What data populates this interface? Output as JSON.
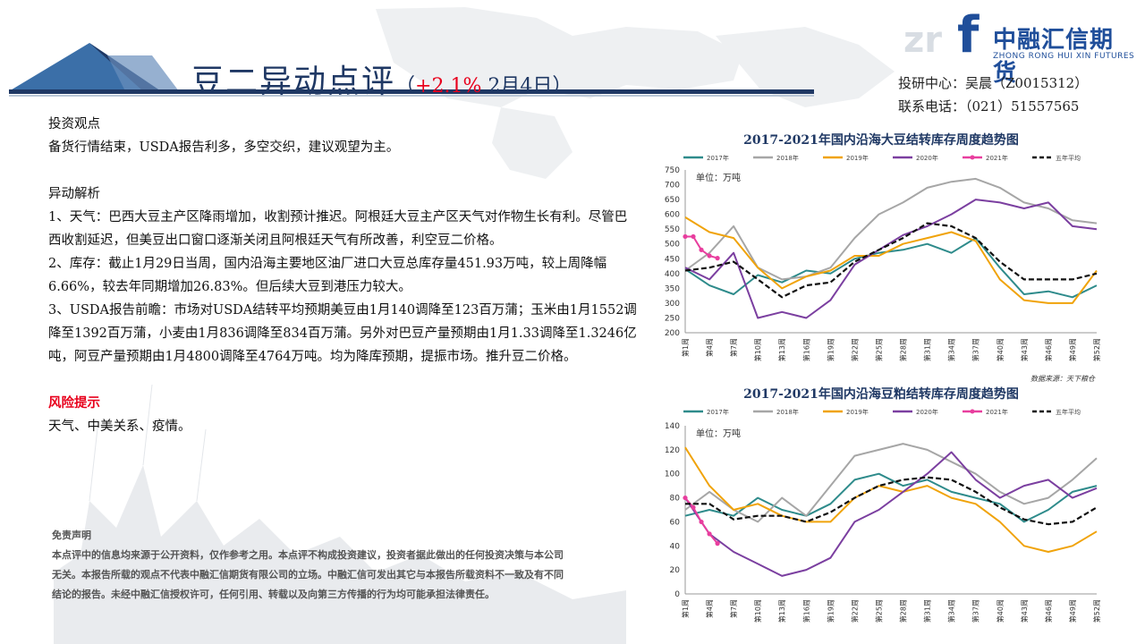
{
  "header": {
    "title": "豆二异动点评",
    "change_open": "（",
    "change_pct": "+2.1%",
    "change_date": " 2月4日）",
    "contact_line1": "投研中心：吴晨（Z0015312）",
    "contact_line2": "联系电话：（021）51557565"
  },
  "logo": {
    "watermark": "zr",
    "mark": "f",
    "name_cn": "中融汇信期货",
    "name_en": "ZHONG RONG HUI XIN FUTURES"
  },
  "body": {
    "view_heading": "投资观点",
    "view_text": "备货行情结束，USDA报告利多，多空交织，建议观望为主。",
    "analysis_heading": "异动解析",
    "analysis_1": "1、天气：巴西大豆主产区降雨增加，收割预计推迟。阿根廷大豆主产区天气对作物生长有利。尽管巴西收割延迟，但美豆出口窗口逐渐关闭且阿根廷天气有所改善，利空豆二价格。",
    "analysis_2": "2、库存：截止1月29日当周，国内沿海主要地区油厂进口大豆总库存量451.93万吨，较上周降幅6.66%，较去年同期增加26.83%。但后续大豆到港压力较大。",
    "analysis_3": "3、USDA报告前瞻：市场对USDA结转平均预期美豆由1月140调降至123百万蒲；玉米由1月1552调降至1392百万蒲，小麦由1月836调降至834百万蒲。另外对巴豆产量预期由1月1.33调降至1.3246亿吨，阿豆产量预期由1月4800调降至4764万吨。均为降库预期，提振市场。推升豆二价格。",
    "risk_heading": "风险提示",
    "risk_text": "天气、中美关系、疫情。",
    "disclaimer_heading": "免责声明",
    "disclaimer_text": "本点评中的信息均来源于公开资料，仅作参考之用。本点评不构成投资建议，投资者据此做出的任何投资决策与本公司无关。本报告所载的观点不代表中融汇信期货有限公司的立场。中融汇信可发出其它与本报告所载资料不一致及有不同结论的报告。未经中融汇信授权许可，任何引用、转载以及向第三方传播的行为均可能承担法律责任。"
  },
  "colors": {
    "2017": "#2e8b8b",
    "2018": "#a6a6a6",
    "2019": "#f0a30a",
    "2020": "#7b3fa0",
    "2021": "#e83e9e",
    "avg": "#111111",
    "title": "#1f3864",
    "accent": "#e8001c"
  },
  "chart_data": [
    {
      "type": "line",
      "title": "2017-2021年国内沿海大豆结转库存周度趋势图",
      "unit_label": "单位：万吨",
      "source": "数据来源：天下粮仓",
      "ylim": [
        200,
        750
      ],
      "yticks": [
        200,
        250,
        300,
        350,
        400,
        450,
        500,
        550,
        600,
        650,
        700,
        750
      ],
      "x_tick_labels": [
        "第1周",
        "第4周",
        "第7周",
        "第10周",
        "第13周",
        "第16周",
        "第19周",
        "第22周",
        "第25周",
        "第28周",
        "第31周",
        "第34周",
        "第37周",
        "第40周",
        "第43周",
        "第46周",
        "第49周",
        "第52周"
      ],
      "legend": [
        "2017年",
        "2018年",
        "2019年",
        "2020年",
        "2021年",
        "五年平均"
      ],
      "series": [
        {
          "name": "2017年",
          "key": "2017",
          "dash": false,
          "x": [
            1,
            4,
            7,
            10,
            13,
            16,
            19,
            22,
            25,
            28,
            31,
            34,
            37,
            40,
            43,
            46,
            49,
            52
          ],
          "values": [
            415,
            360,
            330,
            395,
            370,
            410,
            400,
            450,
            470,
            480,
            500,
            470,
            520,
            420,
            330,
            340,
            320,
            360
          ]
        },
        {
          "name": "2018年",
          "key": "2018",
          "dash": false,
          "x": [
            1,
            4,
            7,
            10,
            13,
            16,
            19,
            22,
            25,
            28,
            31,
            34,
            37,
            40,
            43,
            46,
            49,
            52
          ],
          "values": [
            410,
            470,
            560,
            420,
            380,
            390,
            420,
            520,
            600,
            640,
            690,
            710,
            720,
            690,
            640,
            620,
            580,
            570
          ]
        },
        {
          "name": "2019年",
          "key": "2019",
          "dash": false,
          "x": [
            1,
            4,
            7,
            10,
            13,
            16,
            19,
            22,
            25,
            28,
            31,
            34,
            37,
            40,
            43,
            46,
            49,
            52
          ],
          "values": [
            590,
            540,
            520,
            420,
            350,
            390,
            410,
            460,
            460,
            500,
            520,
            540,
            510,
            380,
            310,
            300,
            300,
            410
          ]
        },
        {
          "name": "2020年",
          "key": "2020",
          "dash": false,
          "x": [
            1,
            4,
            7,
            10,
            13,
            16,
            19,
            22,
            25,
            28,
            31,
            34,
            37,
            40,
            43,
            46,
            49,
            52
          ],
          "values": [
            420,
            380,
            470,
            250,
            270,
            250,
            310,
            430,
            480,
            530,
            560,
            600,
            650,
            640,
            620,
            640,
            560,
            550
          ]
        },
        {
          "name": "2021年",
          "key": "2021",
          "dash": false,
          "x": [
            1,
            2,
            3,
            4,
            5
          ],
          "values": [
            525,
            525,
            480,
            460,
            452
          ]
        },
        {
          "name": "五年平均",
          "key": "avg",
          "dash": true,
          "x": [
            1,
            4,
            7,
            10,
            13,
            16,
            19,
            22,
            25,
            28,
            31,
            34,
            37,
            40,
            43,
            46,
            49,
            52
          ],
          "values": [
            410,
            420,
            440,
            380,
            320,
            360,
            370,
            440,
            480,
            520,
            570,
            560,
            520,
            440,
            380,
            380,
            380,
            400
          ]
        }
      ]
    },
    {
      "type": "line",
      "title": "2017-2021年国内沿海豆粕结转库存周度趋势图",
      "unit_label": "单位：万吨",
      "ylim": [
        0,
        140
      ],
      "yticks": [
        0,
        20,
        40,
        60,
        80,
        100,
        120,
        140
      ],
      "x_tick_labels": [
        "第1周",
        "第4周",
        "第7周",
        "第10周",
        "第13周",
        "第16周",
        "第19周",
        "第22周",
        "第25周",
        "第28周",
        "第31周",
        "第34周",
        "第37周",
        "第40周",
        "第43周",
        "第46周",
        "第49周",
        "第52周"
      ],
      "legend": [
        "2017年",
        "2018年",
        "2019年",
        "2020年",
        "2021年",
        "五年平均"
      ],
      "series": [
        {
          "name": "2017年",
          "key": "2017",
          "dash": false,
          "x": [
            1,
            4,
            7,
            10,
            13,
            16,
            19,
            22,
            25,
            28,
            31,
            34,
            37,
            40,
            43,
            46,
            49,
            52
          ],
          "values": [
            65,
            70,
            65,
            80,
            70,
            65,
            75,
            95,
            100,
            90,
            95,
            85,
            80,
            75,
            60,
            70,
            85,
            90
          ]
        },
        {
          "name": "2018年",
          "key": "2018",
          "dash": false,
          "x": [
            1,
            4,
            7,
            10,
            13,
            16,
            19,
            22,
            25,
            28,
            31,
            34,
            37,
            40,
            43,
            46,
            49,
            52
          ],
          "values": [
            70,
            85,
            70,
            60,
            80,
            65,
            90,
            115,
            120,
            125,
            120,
            110,
            100,
            85,
            75,
            80,
            95,
            113
          ]
        },
        {
          "name": "2019年",
          "key": "2019",
          "dash": false,
          "x": [
            1,
            4,
            7,
            10,
            13,
            16,
            19,
            22,
            25,
            28,
            31,
            34,
            37,
            40,
            43,
            46,
            49,
            52
          ],
          "values": [
            122,
            90,
            70,
            75,
            65,
            60,
            60,
            80,
            90,
            85,
            90,
            80,
            75,
            60,
            40,
            35,
            40,
            52
          ]
        },
        {
          "name": "2020年",
          "key": "2020",
          "dash": false,
          "x": [
            1,
            4,
            7,
            10,
            13,
            16,
            19,
            22,
            25,
            28,
            31,
            34,
            37,
            40,
            43,
            46,
            49,
            52
          ],
          "values": [
            80,
            50,
            35,
            25,
            15,
            20,
            30,
            60,
            70,
            85,
            100,
            118,
            95,
            80,
            90,
            95,
            80,
            88
          ]
        },
        {
          "name": "2021年",
          "key": "2021",
          "dash": false,
          "x": [
            1,
            2,
            3,
            4,
            5
          ],
          "values": [
            80,
            72,
            60,
            50,
            42
          ]
        },
        {
          "name": "五年平均",
          "key": "avg",
          "dash": true,
          "x": [
            1,
            4,
            7,
            10,
            13,
            16,
            19,
            22,
            25,
            28,
            31,
            34,
            37,
            40,
            43,
            46,
            49,
            52
          ],
          "values": [
            75,
            75,
            62,
            65,
            65,
            60,
            68,
            80,
            90,
            95,
            97,
            95,
            85,
            72,
            62,
            58,
            60,
            72
          ]
        }
      ]
    }
  ]
}
